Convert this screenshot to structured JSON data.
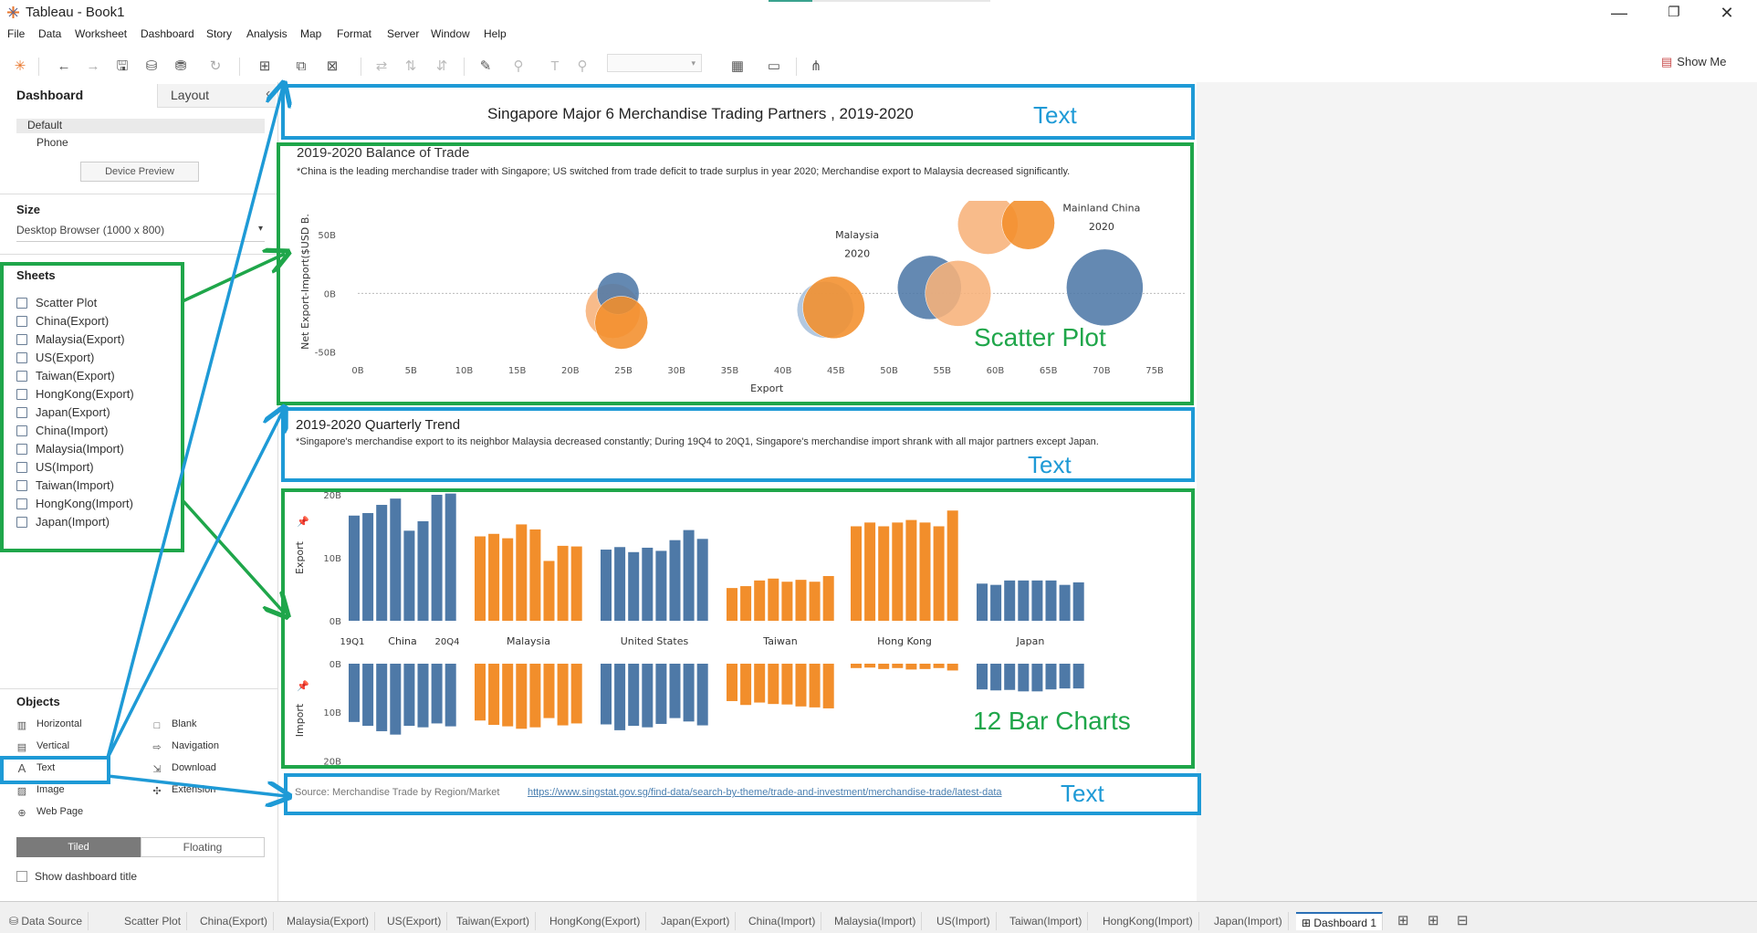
{
  "window": {
    "title": "Tableau - Book1"
  },
  "menu": [
    "File",
    "Data",
    "Worksheet",
    "Dashboard",
    "Story",
    "Analysis",
    "Map",
    "Format",
    "Server",
    "Window",
    "Help"
  ],
  "toolbar": {
    "show_me": "Show Me"
  },
  "left_panel": {
    "tab_dashboard": "Dashboard",
    "tab_layout": "Layout",
    "collapse": "‹",
    "devices": [
      "Default",
      "Phone"
    ],
    "device_preview": "Device Preview",
    "size_header": "Size",
    "size_value": "Desktop Browser (1000 x 800)",
    "sheets_header": "Sheets",
    "sheets": [
      "Scatter Plot",
      "China(Export)",
      "Malaysia(Export)",
      "US(Export)",
      "Taiwan(Export)",
      "HongKong(Export)",
      "Japan(Export)",
      "China(Import)",
      "Malaysia(Import)",
      "US(Import)",
      "Taiwan(Import)",
      "HongKong(Import)",
      "Japan(Import)"
    ],
    "objects_header": "Objects",
    "objects": [
      {
        "label": "Horizontal",
        "icon": "horizontal-icon"
      },
      {
        "label": "Blank",
        "icon": "blank-icon"
      },
      {
        "label": "Vertical",
        "icon": "vertical-icon"
      },
      {
        "label": "Navigation",
        "icon": "navigation-icon"
      },
      {
        "label": "Text",
        "icon": "text-icon"
      },
      {
        "label": "Download",
        "icon": "download-icon"
      },
      {
        "label": "Image",
        "icon": "image-icon"
      },
      {
        "label": "Extension",
        "icon": "extension-icon"
      },
      {
        "label": "Web Page",
        "icon": "web-page-icon"
      }
    ],
    "tiled": "Tiled",
    "floating": "Floating",
    "show_title": "Show dashboard title"
  },
  "dashboard": {
    "title": "Singapore Major 6 Merchandise Trading Partners , 2019-2020",
    "scatter_title": "2019-2020 Balance of Trade",
    "scatter_note": "*China is the leading merchandise trader with Singapore; US switched from trade deficit to trade surplus in year 2020; Merchandise export to Malaysia decreased significantly.",
    "trend_title": "2019-2020 Quarterly Trend",
    "trend_note": "*Singapore's merchandise export to its neighbor Malaysia decreased constantly; During 19Q4 to 20Q1, Singapore's merchandise import shrank with all major partners except Japan.",
    "source_label": "Source: Merchandise Trade by Region/Market",
    "source_link": "https://www.singstat.gov.sg/find-data/search-by-theme/trade-and-investment/merchandise-trade/latest-data"
  },
  "annotations": {
    "text": "Text",
    "scatter": "Scatter Plot",
    "bars": "12 Bar Charts"
  },
  "chart_data": [
    {
      "type": "scatter",
      "xlabel": "Export",
      "ylabel": "Net Export-Import($USD B.",
      "x_ticks": [
        "0B",
        "5B",
        "10B",
        "15B",
        "20B",
        "25B",
        "30B",
        "35B",
        "40B",
        "45B",
        "50B",
        "55B",
        "60B",
        "65B",
        "70B",
        "75B"
      ],
      "y_ticks": [
        "50B",
        "0B",
        "-50B"
      ],
      "xlim": [
        0,
        78
      ],
      "ylim": [
        -55,
        75
      ],
      "points": [
        {
          "x": 24,
          "y": -15,
          "color": "#f7b27a"
        },
        {
          "x": 24.5,
          "y": 0,
          "color": "#4e79a7"
        },
        {
          "x": 24.8,
          "y": -25,
          "color": "#f28e2b"
        },
        {
          "x": 44,
          "y": -14,
          "color": "#a7c0dc"
        },
        {
          "x": 44.8,
          "y": -12,
          "color": "#f28e2b"
        },
        {
          "x": 53.8,
          "y": 5,
          "color": "#4e79a7"
        },
        {
          "x": 56.5,
          "y": 0,
          "color": "#f7b27a"
        },
        {
          "x": 59.3,
          "y": 59,
          "color": "#f7b27a"
        },
        {
          "x": 63.1,
          "y": 60,
          "color": "#f28e2b"
        },
        {
          "x": 70.3,
          "y": 5,
          "color": "#4e79a7"
        }
      ],
      "point_labels": [
        {
          "text": "Malaysia",
          "x": 47,
          "y": 47
        },
        {
          "text": "2020",
          "x": 47,
          "y": 31
        },
        {
          "text": "Mainland China",
          "x": 70,
          "y": 70
        },
        {
          "text": "2020",
          "x": 70,
          "y": 54
        }
      ]
    },
    {
      "type": "bar",
      "export_label": "Export",
      "import_label": "Import",
      "export_ticks": [
        "20B",
        "10B",
        "0B"
      ],
      "import_ticks": [
        "0B",
        "10B",
        "20B"
      ],
      "quarter_first": "19Q1",
      "quarter_last": "20Q4",
      "groups": [
        {
          "name": "China",
          "color": "#4e79a7",
          "export": [
            16.7,
            17.1,
            18.4,
            19.4,
            14.3,
            15.8,
            20,
            20.2
          ],
          "import": [
            12,
            12.8,
            13.9,
            14.6,
            12.8,
            13.1,
            12.3,
            12.9
          ]
        },
        {
          "name": "Malaysia",
          "color": "#f28e2b",
          "export": [
            13.4,
            13.8,
            13.1,
            15.3,
            14.5,
            9.5,
            11.9,
            11.8
          ],
          "import": [
            11.7,
            12.6,
            12.9,
            13.4,
            13.1,
            11.2,
            12.7,
            12.3
          ]
        },
        {
          "name": "United States",
          "color": "#4e79a7",
          "export": [
            11.3,
            11.7,
            10.9,
            11.6,
            11.1,
            12.8,
            14.4,
            13
          ],
          "import": [
            12.5,
            13.7,
            12.8,
            13.1,
            12.4,
            11.2,
            11.9,
            12.7
          ]
        },
        {
          "name": "Taiwan",
          "color": "#f28e2b",
          "export": [
            5.2,
            5.5,
            6.4,
            6.7,
            6.2,
            6.5,
            6.2,
            7.1
          ],
          "import": [
            7.7,
            8.5,
            8,
            8.3,
            8.4,
            8.8,
            9,
            9.2
          ]
        },
        {
          "name": "Hong Kong",
          "color": "#f28e2b",
          "export": [
            15,
            15.6,
            15,
            15.6,
            16,
            15.6,
            15,
            17.5
          ],
          "import": [
            0.9,
            0.8,
            1.1,
            0.9,
            1.2,
            1.1,
            0.9,
            1.4
          ]
        },
        {
          "name": "Japan",
          "color": "#4e79a7",
          "export": [
            5.9,
            5.7,
            6.4,
            6.4,
            6.4,
            6.4,
            5.7,
            6.1
          ],
          "import": [
            5.3,
            5.5,
            5.4,
            5.7,
            5.7,
            5.3,
            5.1,
            5.1
          ]
        }
      ]
    }
  ],
  "bottom_tabs": [
    "Data Source",
    "Scatter Plot",
    "China(Export)",
    "Malaysia(Export)",
    "US(Export)",
    "Taiwan(Export)",
    "HongKong(Export)",
    "Japan(Export)",
    "China(Import)",
    "Malaysia(Import)",
    "US(Import)",
    "Taiwan(Import)",
    "HongKong(Import)",
    "Japan(Import)",
    "Dashboard 1"
  ]
}
